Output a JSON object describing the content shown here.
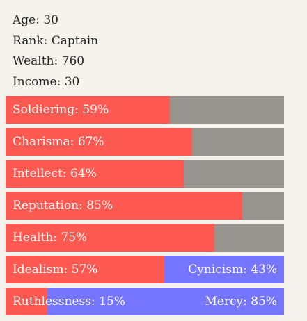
{
  "stats": {
    "age": "Age: 30",
    "rank": "Rank: Captain",
    "wealth": "Wealth: 760",
    "income": "Income: 30"
  },
  "bars": [
    {
      "name": "soldiering",
      "label": "Soldiering: 59%",
      "value": 0.59
    },
    {
      "name": "charisma",
      "label": "Charisma: 67%",
      "value": 0.67
    },
    {
      "name": "intellect",
      "label": "Intellect: 64%",
      "value": 0.64
    },
    {
      "name": "reputation",
      "label": "Reputation: 85%",
      "value": 0.85
    },
    {
      "name": "health",
      "label": "Health: 75%",
      "value": 0.75
    }
  ],
  "opposed_bars": [
    {
      "name": "idealism-cynicism",
      "left_label": "Idealism: 57%",
      "right_label": "Cynicism: 43%",
      "value": 0.57
    },
    {
      "name": "ruthlessness-mercy",
      "left_label": "Ruthlessness: 15%",
      "right_label": "Mercy: 85%",
      "value": 0.15
    }
  ],
  "colors": {
    "fill": "#ff5a52",
    "track": "#97938f",
    "opposed": "#7575ff",
    "background": "#f6f3ef"
  }
}
